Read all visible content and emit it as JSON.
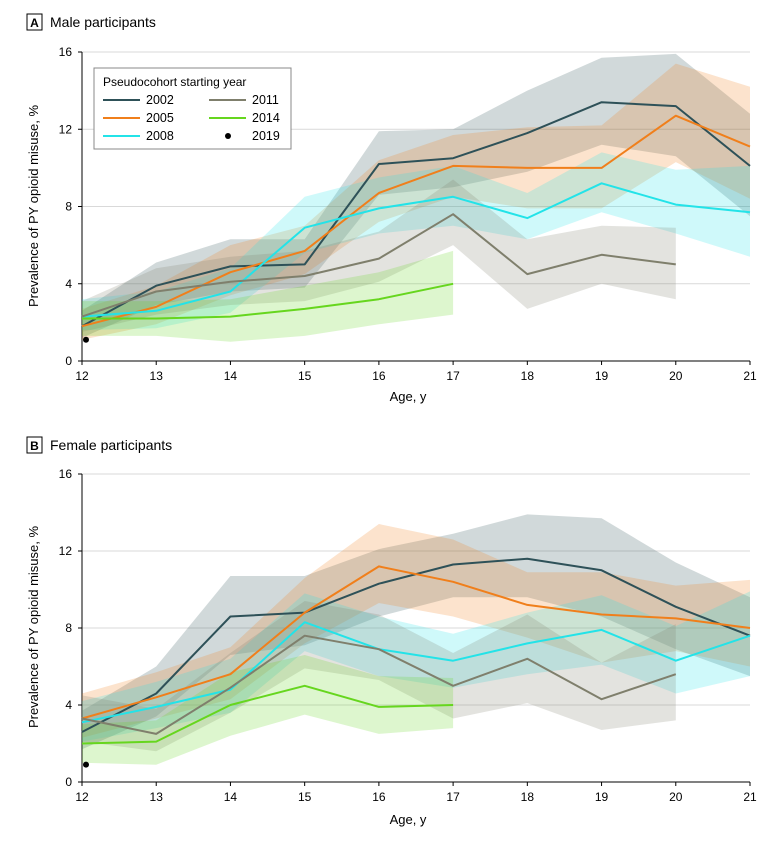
{
  "chart_data": [
    {
      "type": "line",
      "panel_letter": "A",
      "title": "Male participants",
      "xlabel": "Age, y",
      "ylabel": "Prevalence of PY opioid misuse, %",
      "xlim": [
        12,
        21
      ],
      "ylim": [
        0,
        16
      ],
      "xticks": [
        12,
        13,
        14,
        15,
        16,
        17,
        18,
        19,
        20,
        21
      ],
      "yticks": [
        0,
        4,
        8,
        12,
        16
      ],
      "legend": {
        "title": "Pseudocohort starting year",
        "position": "top-left",
        "entries": [
          "2002",
          "2011",
          "2005",
          "2014",
          "2008",
          "2019"
        ]
      },
      "series": [
        {
          "name": "2002",
          "color": "#2e5158",
          "x": [
            12,
            13,
            14,
            15,
            16,
            17,
            18,
            19,
            20,
            21
          ],
          "values": [
            1.8,
            3.9,
            4.9,
            5.0,
            10.2,
            10.5,
            11.8,
            13.4,
            13.2,
            10.1
          ],
          "lower": [
            1.2,
            2.9,
            3.6,
            3.8,
            8.6,
            9.0,
            9.8,
            11.2,
            10.6,
            7.5
          ],
          "upper": [
            2.6,
            5.1,
            6.3,
            6.3,
            11.9,
            12.0,
            14.0,
            15.7,
            15.9,
            12.8
          ]
        },
        {
          "name": "2005",
          "color": "#f07f1b",
          "x": [
            12,
            13,
            14,
            15,
            16,
            17,
            18,
            19,
            20,
            21
          ],
          "values": [
            1.8,
            2.8,
            4.6,
            5.7,
            8.7,
            10.1,
            10.0,
            10.0,
            12.7,
            11.1
          ],
          "lower": [
            1.1,
            1.9,
            3.4,
            4.5,
            7.2,
            8.5,
            7.9,
            7.9,
            10.3,
            8.4
          ],
          "upper": [
            2.7,
            3.9,
            6.0,
            7.0,
            10.4,
            11.7,
            12.1,
            12.2,
            15.4,
            14.2
          ]
        },
        {
          "name": "2008",
          "color": "#23e3e8",
          "x": [
            12,
            13,
            14,
            15,
            16,
            17,
            18,
            19,
            20,
            21
          ],
          "values": [
            2.3,
            2.6,
            3.6,
            6.9,
            7.9,
            8.5,
            7.4,
            9.2,
            8.1,
            7.7
          ],
          "lower": [
            1.6,
            1.7,
            2.5,
            5.6,
            6.6,
            7.0,
            6.3,
            7.7,
            6.6,
            5.4
          ],
          "upper": [
            3.2,
            3.6,
            4.8,
            8.5,
            9.5,
            10.1,
            8.7,
            10.8,
            9.9,
            10.1
          ]
        },
        {
          "name": "2011",
          "color": "#7f7f6c",
          "x": [
            12,
            13,
            14,
            15,
            16,
            17,
            18,
            19,
            20
          ],
          "values": [
            2.3,
            3.6,
            4.1,
            4.4,
            5.3,
            7.6,
            4.5,
            5.5,
            5.0
          ],
          "lower": [
            1.5,
            2.4,
            2.9,
            3.1,
            4.1,
            6.0,
            2.7,
            4.0,
            3.2
          ],
          "upper": [
            3.1,
            4.8,
            5.4,
            5.7,
            6.7,
            9.4,
            6.3,
            7.0,
            6.9
          ]
        },
        {
          "name": "2014",
          "color": "#66d61e",
          "x": [
            12,
            13,
            14,
            15,
            16,
            17
          ],
          "values": [
            2.2,
            2.2,
            2.3,
            2.7,
            3.2,
            4.0
          ],
          "lower": [
            1.3,
            1.3,
            1.0,
            1.3,
            1.9,
            2.4
          ],
          "upper": [
            3.1,
            3.1,
            3.2,
            3.9,
            4.6,
            5.7
          ]
        },
        {
          "name": "2019",
          "color": "#000000",
          "x": [
            12
          ],
          "values": [
            1.1
          ],
          "marker": "point"
        }
      ]
    },
    {
      "type": "line",
      "panel_letter": "B",
      "title": "Female participants",
      "xlabel": "Age, y",
      "ylabel": "Prevalence of PY opioid misuse, %",
      "xlim": [
        12,
        21
      ],
      "ylim": [
        0,
        16
      ],
      "xticks": [
        12,
        13,
        14,
        15,
        16,
        17,
        18,
        19,
        20,
        21
      ],
      "yticks": [
        0,
        4,
        8,
        12,
        16
      ],
      "series": [
        {
          "name": "2002",
          "color": "#2e5158",
          "x": [
            12,
            13,
            14,
            15,
            16,
            17,
            18,
            19,
            20,
            21
          ],
          "values": [
            2.6,
            4.6,
            8.6,
            8.8,
            10.3,
            11.3,
            11.6,
            11.0,
            9.1,
            7.6
          ],
          "lower": [
            1.7,
            3.4,
            6.6,
            7.1,
            8.6,
            9.6,
            9.6,
            8.6,
            6.9,
            5.5
          ],
          "upper": [
            3.7,
            6.0,
            10.7,
            10.7,
            12.1,
            12.9,
            13.9,
            13.7,
            11.4,
            9.6
          ]
        },
        {
          "name": "2005",
          "color": "#f07f1b",
          "x": [
            12,
            13,
            14,
            15,
            16,
            17,
            18,
            19,
            20,
            21
          ],
          "values": [
            3.3,
            4.4,
            5.6,
            8.8,
            11.2,
            10.4,
            9.2,
            8.7,
            8.5,
            8.0
          ],
          "lower": [
            2.3,
            3.3,
            4.3,
            7.2,
            9.3,
            8.6,
            7.5,
            6.2,
            6.8,
            6.0
          ],
          "upper": [
            4.6,
            5.7,
            7.0,
            10.6,
            13.4,
            12.6,
            10.9,
            10.9,
            10.2,
            10.5
          ]
        },
        {
          "name": "2008",
          "color": "#23e3e8",
          "x": [
            12,
            13,
            14,
            15,
            16,
            17,
            18,
            19,
            20,
            21
          ],
          "values": [
            3.1,
            3.9,
            4.8,
            8.3,
            6.9,
            6.3,
            7.2,
            7.9,
            6.3,
            7.6
          ],
          "lower": [
            2.1,
            2.8,
            3.6,
            6.8,
            5.5,
            4.9,
            5.6,
            6.1,
            4.6,
            5.5
          ],
          "upper": [
            4.2,
            5.2,
            6.4,
            9.8,
            8.6,
            7.7,
            8.8,
            9.7,
            8.1,
            9.9
          ]
        },
        {
          "name": "2011",
          "color": "#7f7f6c",
          "x": [
            12,
            13,
            14,
            15,
            16,
            17,
            18,
            19,
            20
          ],
          "values": [
            3.3,
            2.5,
            4.9,
            7.6,
            6.9,
            5.0,
            6.4,
            4.3,
            5.6
          ],
          "lower": [
            2.1,
            1.6,
            3.6,
            5.9,
            5.3,
            3.3,
            4.1,
            2.7,
            3.2
          ],
          "upper": [
            4.5,
            3.8,
            6.7,
            9.4,
            8.7,
            6.7,
            8.7,
            6.2,
            8.2
          ]
        },
        {
          "name": "2014",
          "color": "#66d61e",
          "x": [
            12,
            13,
            14,
            15,
            16,
            17
          ],
          "values": [
            2.0,
            2.1,
            4.0,
            5.0,
            3.9,
            4.0
          ],
          "lower": [
            1.0,
            0.9,
            2.4,
            3.5,
            2.5,
            2.8
          ],
          "upper": [
            3.0,
            3.2,
            5.7,
            6.6,
            5.5,
            5.4
          ]
        },
        {
          "name": "2019",
          "color": "#000000",
          "x": [
            12
          ],
          "values": [
            0.9
          ],
          "marker": "point"
        }
      ]
    }
  ]
}
